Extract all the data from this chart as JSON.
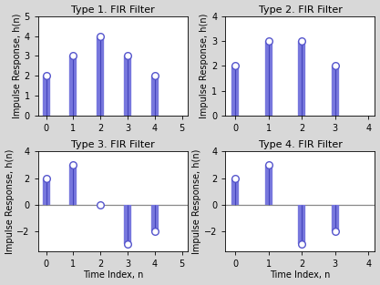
{
  "subplots": [
    {
      "title": "Type 1. FIR Filter",
      "x": [
        0,
        1,
        2,
        3,
        4
      ],
      "y": [
        2,
        3,
        4,
        3,
        2
      ],
      "xlim": [
        -0.3,
        5.2
      ],
      "ylim": [
        0,
        5
      ],
      "xticks": [
        0,
        1,
        2,
        3,
        4,
        5
      ],
      "yticks": [
        0,
        1,
        2,
        3,
        4,
        5
      ],
      "has_hline": false,
      "show_xlabel": false,
      "show_ylabel": true
    },
    {
      "title": "Type 2. FIR Filter",
      "x": [
        0,
        1,
        2,
        3
      ],
      "y": [
        2,
        3,
        3,
        2
      ],
      "xlim": [
        -0.3,
        4.2
      ],
      "ylim": [
        0,
        4
      ],
      "xticks": [
        0,
        1,
        2,
        3,
        4
      ],
      "yticks": [
        0,
        1,
        2,
        3,
        4
      ],
      "has_hline": false,
      "show_xlabel": false,
      "show_ylabel": true
    },
    {
      "title": "Type 3. FIR Filter",
      "x": [
        0,
        1,
        2,
        3,
        4
      ],
      "y": [
        2,
        3,
        0,
        -3,
        -2
      ],
      "xlim": [
        -0.3,
        5.2
      ],
      "ylim": [
        -3.5,
        4
      ],
      "xticks": [
        0,
        1,
        2,
        3,
        4,
        5
      ],
      "yticks": [
        -2,
        0,
        2,
        4
      ],
      "has_hline": true,
      "show_xlabel": true,
      "show_ylabel": true
    },
    {
      "title": "Type 4. FIR Filter",
      "x": [
        0,
        1,
        2,
        3
      ],
      "y": [
        2,
        3,
        -3,
        -2
      ],
      "xlim": [
        -0.3,
        4.2
      ],
      "ylim": [
        -3.5,
        4
      ],
      "xticks": [
        0,
        1,
        2,
        3,
        4
      ],
      "yticks": [
        -2,
        0,
        2,
        4
      ],
      "has_hline": true,
      "show_xlabel": true,
      "show_ylabel": true
    }
  ],
  "line_color": "#7777dd",
  "line_color_dark": "#4444bb",
  "marker_color": "#5555cc",
  "xlabel": "Time Index, n",
  "ylabel": "Impulse Response, h(n)",
  "title_fontsize": 8,
  "label_fontsize": 7,
  "tick_fontsize": 7,
  "fig_bg": "#d8d8d8",
  "ax_bg": "#ffffff",
  "stem_lw": 6.0,
  "marker_size": 5.5
}
